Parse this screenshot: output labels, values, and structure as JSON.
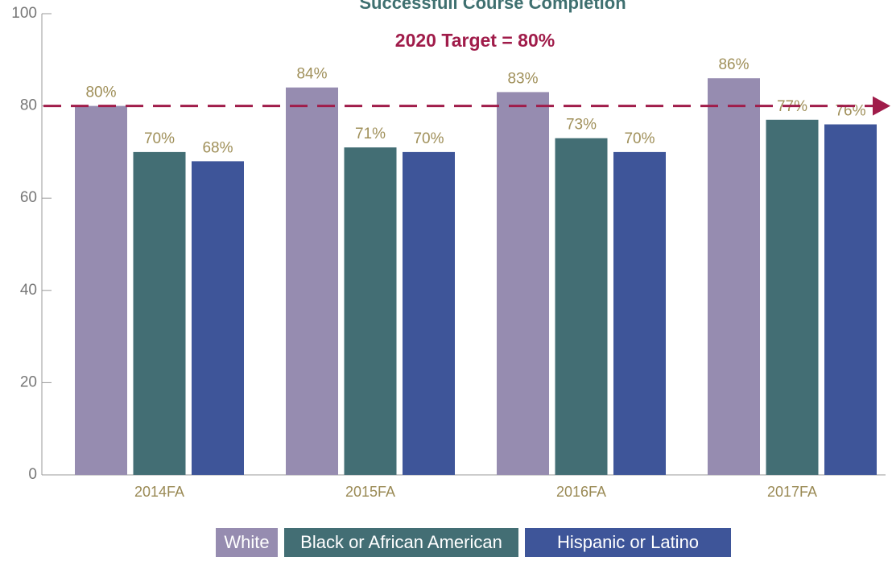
{
  "chart_data": {
    "type": "bar",
    "title": "Successfull Course Completion",
    "target": {
      "label": "2020 Target = 80%",
      "value": 80,
      "color": "#a01c4a"
    },
    "categories": [
      "2014FA",
      "2015FA",
      "2016FA",
      "2017FA"
    ],
    "series": [
      {
        "name": "White",
        "color": "#968cb0",
        "values": [
          80,
          84,
          83,
          86
        ],
        "value_labels": [
          "80%",
          "84%",
          "83%",
          "86%"
        ]
      },
      {
        "name": "Black or African American",
        "color": "#436e74",
        "values": [
          70,
          71,
          73,
          77
        ],
        "value_labels": [
          "70%",
          "71%",
          "73%",
          "77%"
        ]
      },
      {
        "name": "Hispanic or Latino",
        "color": "#3e5599",
        "values": [
          68,
          70,
          70,
          76
        ],
        "value_labels": [
          "68%",
          "70%",
          "70%",
          "76%"
        ]
      }
    ],
    "ylim": [
      0,
      100
    ],
    "yticks": [
      0,
      20,
      40,
      60,
      80,
      100
    ],
    "legend": "bottom"
  }
}
